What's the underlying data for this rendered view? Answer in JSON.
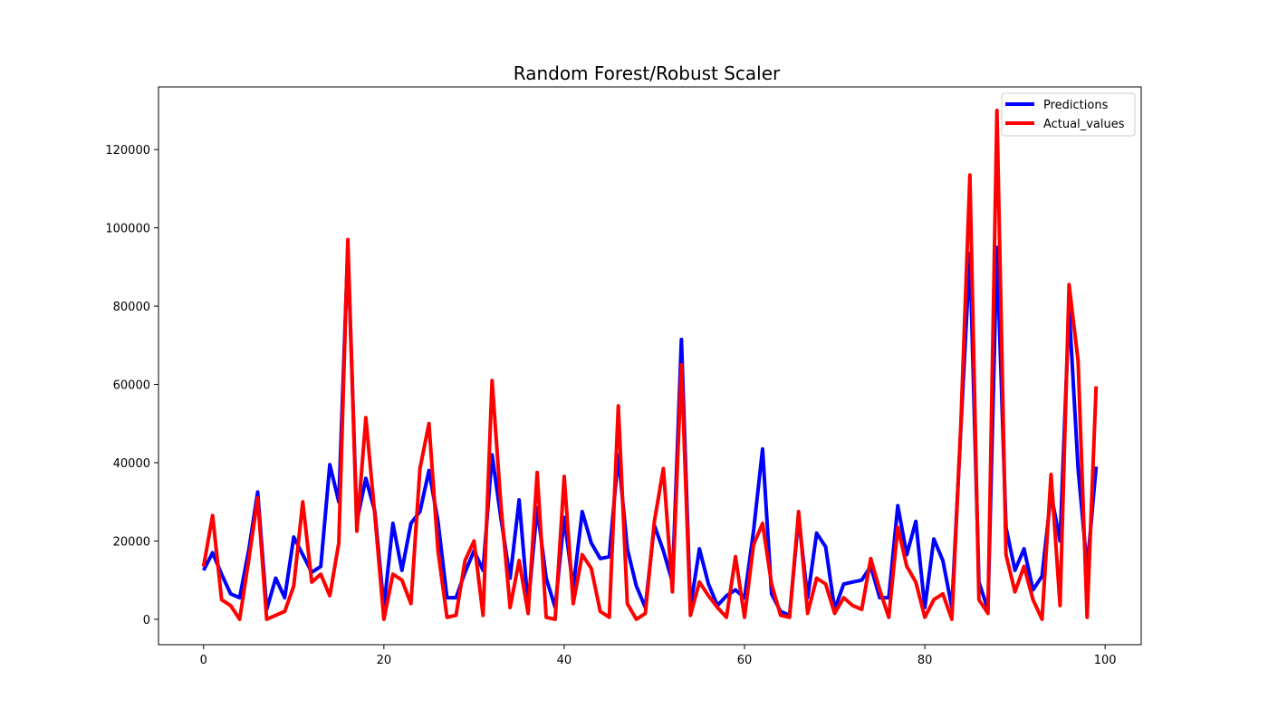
{
  "chart_data": {
    "type": "line",
    "title": "Random Forest/Robust Scaler",
    "xlabel": "",
    "ylabel": "",
    "xlim": [
      -5,
      104
    ],
    "ylim": [
      -6500,
      136000
    ],
    "xticks": [
      0,
      20,
      40,
      60,
      80,
      100
    ],
    "yticks": [
      0,
      20000,
      40000,
      60000,
      80000,
      100000,
      120000
    ],
    "xtick_labels": [
      "0",
      "20",
      "40",
      "60",
      "80",
      "100"
    ],
    "ytick_labels": [
      "0",
      "20000",
      "40000",
      "60000",
      "80000",
      "100000",
      "120000"
    ],
    "grid": false,
    "legend_position": "top-right",
    "series": [
      {
        "name": "Predictions",
        "color": "#0000ff",
        "values": [
          12500,
          17000,
          11500,
          6500,
          5500,
          17500,
          32500,
          2500,
          10500,
          5500,
          21000,
          16500,
          12000,
          13500,
          39500,
          30000,
          95000,
          25000,
          36000,
          27500,
          3000,
          24500,
          12500,
          24500,
          27500,
          38000,
          25000,
          5500,
          5500,
          12000,
          17500,
          12500,
          42000,
          25500,
          10500,
          30500,
          3500,
          28500,
          10500,
          3000,
          26000,
          8000,
          27500,
          19500,
          15500,
          16000,
          42000,
          18000,
          8500,
          3000,
          24000,
          17500,
          9500,
          71500,
          3000,
          18000,
          9000,
          3500,
          6000,
          7500,
          5500,
          22500,
          43500,
          6500,
          2000,
          1000,
          26000,
          5500,
          22000,
          18500,
          2500,
          9000,
          9500,
          10000,
          13500,
          5500,
          5500,
          29000,
          16500,
          25000,
          3000,
          20500,
          15000,
          3000,
          49000,
          93500,
          9500,
          2500,
          95000,
          23500,
          12500,
          18000,
          7500,
          11000,
          32000,
          20000,
          79500,
          38500,
          13000,
          39000
        ]
      },
      {
        "name": "Actual_values",
        "color": "#ff0000",
        "values": [
          13500,
          26500,
          5000,
          3500,
          0,
          15000,
          31000,
          0,
          1000,
          2000,
          8500,
          30000,
          9500,
          11500,
          6000,
          19500,
          97000,
          22500,
          51500,
          26500,
          0,
          11500,
          10000,
          4000,
          38500,
          50000,
          17500,
          500,
          1000,
          15000,
          20000,
          1000,
          61000,
          28500,
          3000,
          15000,
          1500,
          37500,
          500,
          0,
          36500,
          4000,
          16500,
          13000,
          2000,
          500,
          54500,
          4000,
          0,
          1500,
          25000,
          38500,
          7000,
          65000,
          1000,
          9500,
          6000,
          3000,
          500,
          16000,
          500,
          19000,
          24500,
          9000,
          1000,
          500,
          27500,
          1500,
          10500,
          9000,
          1500,
          5500,
          3500,
          2500,
          15500,
          7500,
          500,
          23500,
          13500,
          9500,
          500,
          5000,
          6500,
          0,
          50000,
          113500,
          5000,
          1500,
          130000,
          16500,
          7000,
          13500,
          5000,
          0,
          37000,
          3500,
          85500,
          66000,
          500,
          59500
        ]
      }
    ]
  }
}
